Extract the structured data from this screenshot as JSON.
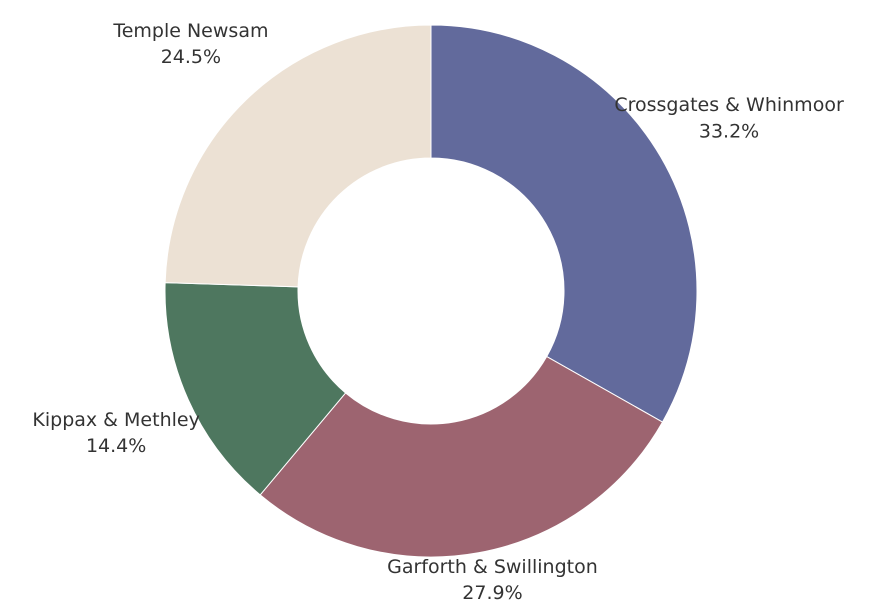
{
  "chart_data": {
    "type": "pie",
    "style": "donut",
    "title": "",
    "categories": [
      "Crossgates & Whinmoor",
      "Garforth & Swillington",
      "Kippax & Methley",
      "Temple Newsam"
    ],
    "values": [
      33.2,
      27.9,
      14.4,
      24.5
    ],
    "value_labels": [
      "33.2%",
      "27.9%",
      "14.4%",
      "24.5%"
    ],
    "colors": [
      "#626a9c",
      "#9d6470",
      "#4e775f",
      "#ece1d4"
    ],
    "start_angle": "12 o'clock",
    "direction": "clockwise",
    "legend": "none"
  }
}
